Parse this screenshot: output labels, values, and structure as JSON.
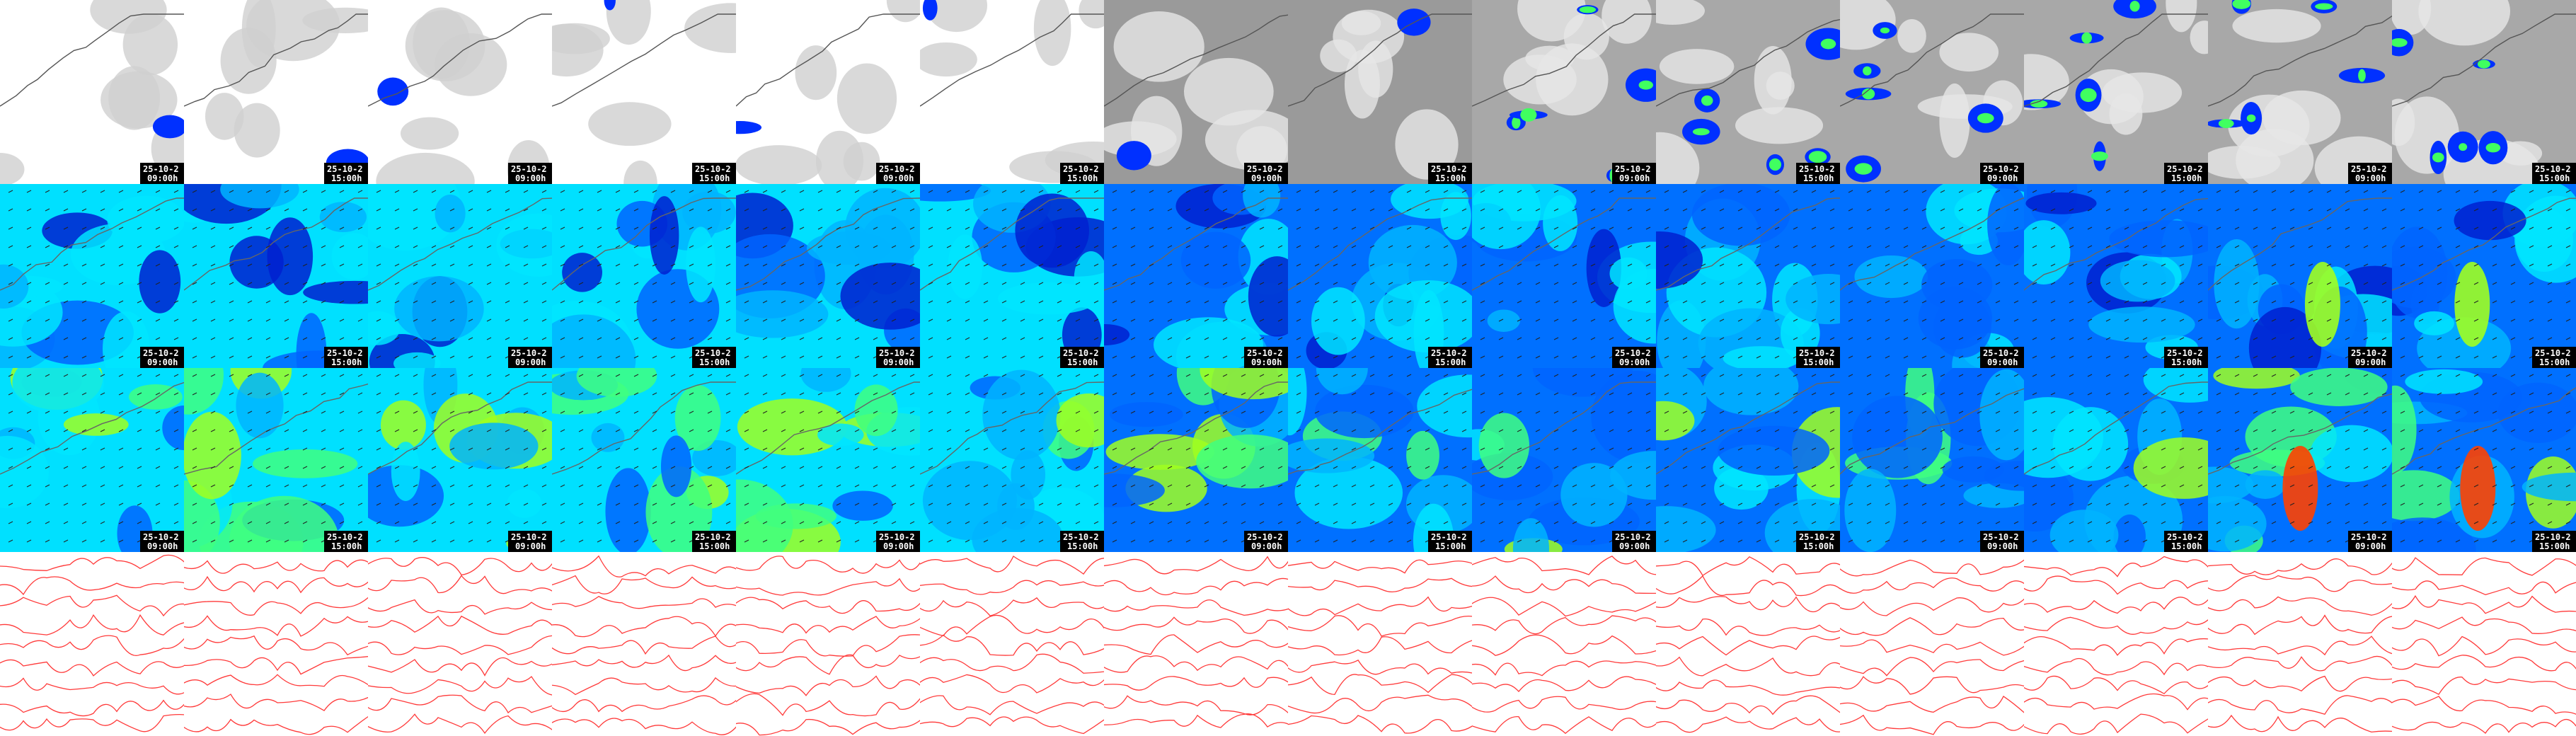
{
  "rows": [
    {
      "labels": [
        {
          "date": "25-10-2",
          "time": "09:00h"
        },
        {
          "date": "25-10-2",
          "time": "15:00h"
        },
        {
          "date": "25-10-2",
          "time": "09:00h"
        },
        {
          "date": "25-10-2",
          "time": "15:00h"
        },
        {
          "date": "25-10-2",
          "time": "09:00h"
        },
        {
          "date": "25-10-2",
          "time": "15:00h"
        },
        {
          "date": "25-10-2",
          "time": "09:00h"
        },
        {
          "date": "25-10-2",
          "time": "15:00h"
        },
        {
          "date": "25-10-2",
          "time": "09:00h"
        },
        {
          "date": "25-10-2",
          "time": "15:00h"
        },
        {
          "date": "25-10-2",
          "time": "09:00h"
        },
        {
          "date": "25-10-2",
          "time": "15:00h"
        },
        {
          "date": "25-10-2",
          "time": "09:00h"
        },
        {
          "date": "25-10-2",
          "time": "15:00h"
        }
      ]
    },
    {
      "labels": [
        {
          "date": "25-10-2",
          "time": "09:00h"
        },
        {
          "date": "25-10-2",
          "time": "15:00h"
        },
        {
          "date": "25-10-2",
          "time": "09:00h"
        },
        {
          "date": "25-10-2",
          "time": "15:00h"
        },
        {
          "date": "25-10-2",
          "time": "09:00h"
        },
        {
          "date": "25-10-2",
          "time": "15:00h"
        },
        {
          "date": "25-10-2",
          "time": "09:00h"
        },
        {
          "date": "25-10-2",
          "time": "15:00h"
        },
        {
          "date": "25-10-2",
          "time": "09:00h"
        },
        {
          "date": "25-10-2",
          "time": "15:00h"
        },
        {
          "date": "25-10-2",
          "time": "09:00h"
        },
        {
          "date": "25-10-2",
          "time": "15:00h"
        },
        {
          "date": "25-10-2",
          "time": "09:00h"
        },
        {
          "date": "25-10-2",
          "time": "15:00h"
        }
      ]
    },
    {
      "labels": [
        {
          "date": "25-10-2",
          "time": "09:00h"
        },
        {
          "date": "25-10-2",
          "time": "15:00h"
        },
        {
          "date": "25-10-2",
          "time": "09:00h"
        },
        {
          "date": "25-10-2",
          "time": "15:00h"
        },
        {
          "date": "25-10-2",
          "time": "09:00h"
        },
        {
          "date": "25-10-2",
          "time": "15:00h"
        },
        {
          "date": "25-10-2",
          "time": "09:00h"
        },
        {
          "date": "25-10-2",
          "time": "15:00h"
        },
        {
          "date": "25-10-2",
          "time": "09:00h"
        },
        {
          "date": "25-10-2",
          "time": "15:00h"
        },
        {
          "date": "25-10-2",
          "time": "09:00h"
        },
        {
          "date": "25-10-2",
          "time": "15:00h"
        },
        {
          "date": "25-10-2",
          "time": "09:00h"
        },
        {
          "date": "25-10-2",
          "time": "15:00h"
        }
      ]
    }
  ]
}
